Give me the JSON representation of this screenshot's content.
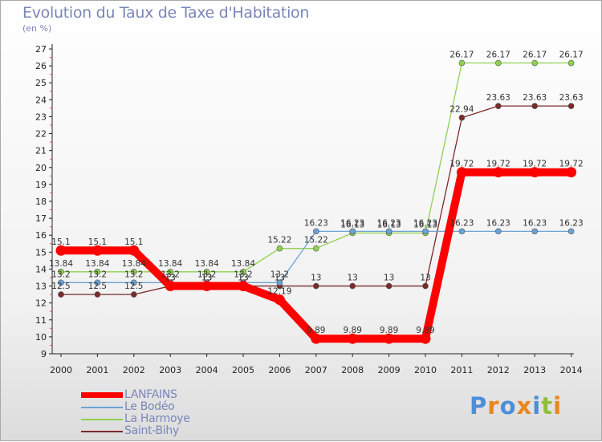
{
  "title": "Evolution du Taux de Taxe d'Habitation",
  "subtitle": "(en %)",
  "logo": "Proxiti",
  "chart_data": {
    "type": "line",
    "x": [
      2000,
      2001,
      2002,
      2003,
      2004,
      2005,
      2006,
      2007,
      2008,
      2009,
      2010,
      2011,
      2012,
      2013,
      2014
    ],
    "ylim": [
      9,
      27
    ],
    "yticks": [
      9,
      10,
      11,
      12,
      13,
      14,
      15,
      16,
      17,
      18,
      19,
      20,
      21,
      22,
      23,
      24,
      25,
      26,
      27
    ],
    "grid": false,
    "legend_position": "bottom-left",
    "series": [
      {
        "name": "LANFAINS",
        "color": "#ff0000",
        "values": [
          15.1,
          15.1,
          15.1,
          13,
          13,
          13,
          12.19,
          9.89,
          9.89,
          9.89,
          9.89,
          19.72,
          19.72,
          19.72,
          19.72
        ],
        "labels": [
          "15.1",
          "15.1",
          "15.1",
          "13",
          "13",
          "13",
          "12.19",
          "9.89",
          "9.89",
          "9.89",
          "9.89",
          "19.72",
          "19.72",
          "19.72",
          "19.72"
        ]
      },
      {
        "name": "Le Bodéo",
        "color": "#6ba3d6",
        "values": [
          13.2,
          13.2,
          13.2,
          13.2,
          13.2,
          13.2,
          13.2,
          16.23,
          16.23,
          16.23,
          16.23,
          16.23,
          16.23,
          16.23,
          16.23
        ],
        "labels": [
          "13.2",
          "13.2",
          "13.2",
          "13.2",
          "13.2",
          "13.2",
          "13.2",
          "16.23",
          "16.23",
          "16.23",
          "16.23",
          "16.23",
          "16.23",
          "16.23",
          "16.23"
        ]
      },
      {
        "name": "La Harmoye",
        "color": "#8fd14f",
        "values": [
          13.84,
          13.84,
          13.84,
          13.84,
          13.84,
          13.84,
          15.22,
          15.22,
          16.13,
          16.13,
          16.13,
          26.17,
          26.17,
          26.17,
          26.17
        ],
        "labels": [
          "13.84",
          "13.84",
          "13.84",
          "13.84",
          "13.84",
          "13.84",
          "15.22",
          "15.22",
          "16.13",
          "16.13",
          "16.13",
          "26.17",
          "26.17",
          "26.17",
          "26.17"
        ]
      },
      {
        "name": "Saint-Bihy",
        "color": "#7a2a2a",
        "values": [
          12.5,
          12.5,
          12.5,
          13,
          13,
          13,
          13,
          13,
          13,
          13,
          13,
          22.94,
          23.63,
          23.63,
          23.63
        ],
        "labels": [
          "12.5",
          "12.5",
          "12.5",
          "13",
          "13",
          "13",
          "13",
          "13",
          "13",
          "13",
          "13",
          "22.94",
          "23.63",
          "23.63",
          "23.63"
        ]
      }
    ]
  }
}
